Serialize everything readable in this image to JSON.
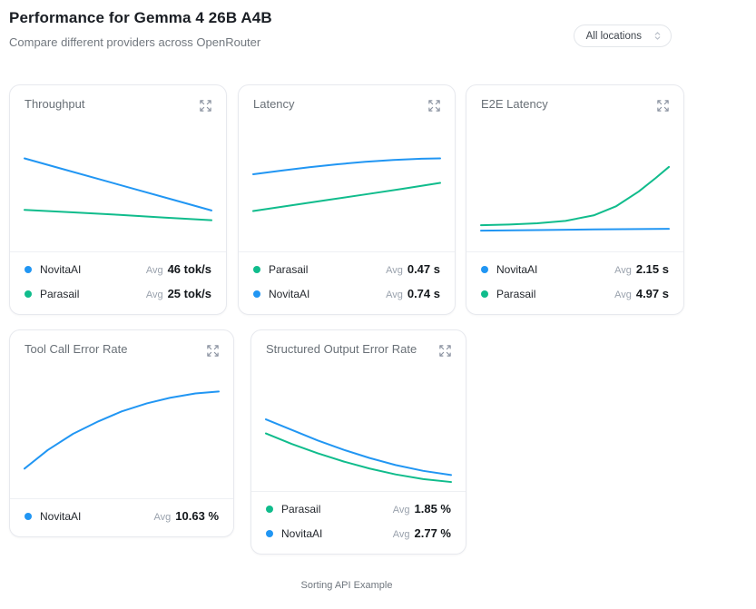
{
  "header": {
    "title": "Performance for Gemma 4 26B A4B",
    "subtitle": "Compare different providers across OpenRouter",
    "locations_dropdown": {
      "value": "All locations"
    }
  },
  "footer": {
    "caption": "Sorting API Example"
  },
  "colors": {
    "blue": "#2196f3",
    "green": "#10bc8c",
    "card_border": "#e7e9ee"
  },
  "chart_data": [
    {
      "type": "line",
      "title": "Throughput",
      "unit": "tok/s",
      "axes_visible": false,
      "legend_position": "bottom",
      "legend": [
        {
          "name": "NovitaAI",
          "color": "#2196f3",
          "avg_label": "Avg",
          "avg_value": "46 tok/s"
        },
        {
          "name": "Parasail",
          "color": "#10bc8c",
          "avg_label": "Avg",
          "avg_value": "25 tok/s"
        }
      ],
      "series": [
        {
          "name": "NovitaAI",
          "color": "#2196f3",
          "points_pct": [
            [
              0,
              30
            ],
            [
              20,
              38.5
            ],
            [
              40,
              47
            ],
            [
              60,
              55.5
            ],
            [
              80,
              64
            ],
            [
              100,
              72.5
            ]
          ]
        },
        {
          "name": "Parasail",
          "color": "#10bc8c",
          "points_pct": [
            [
              0,
              72
            ],
            [
              25,
              74
            ],
            [
              50,
              76
            ],
            [
              75,
              78.3
            ],
            [
              100,
              80.5
            ]
          ]
        }
      ]
    },
    {
      "type": "line",
      "title": "Latency",
      "unit": "s",
      "axes_visible": false,
      "legend_position": "bottom",
      "legend": [
        {
          "name": "Parasail",
          "color": "#10bc8c",
          "avg_label": "Avg",
          "avg_value": "0.47 s"
        },
        {
          "name": "NovitaAI",
          "color": "#2196f3",
          "avg_label": "Avg",
          "avg_value": "0.74 s"
        }
      ],
      "series": [
        {
          "name": "NovitaAI",
          "color": "#2196f3",
          "points_pct": [
            [
              0,
              43
            ],
            [
              15,
              40
            ],
            [
              30,
              37.2
            ],
            [
              45,
              34.8
            ],
            [
              60,
              32.8
            ],
            [
              75,
              31.3
            ],
            [
              90,
              30.3
            ],
            [
              100,
              30
            ]
          ]
        },
        {
          "name": "Parasail",
          "color": "#10bc8c",
          "points_pct": [
            [
              0,
              73
            ],
            [
              20,
              68.4
            ],
            [
              40,
              63.9
            ],
            [
              60,
              59.4
            ],
            [
              80,
              54.8
            ],
            [
              100,
              50
            ]
          ]
        }
      ]
    },
    {
      "type": "line",
      "title": "E2E Latency",
      "unit": "s",
      "axes_visible": false,
      "legend_position": "bottom",
      "legend": [
        {
          "name": "NovitaAI",
          "color": "#2196f3",
          "avg_label": "Avg",
          "avg_value": "2.15 s"
        },
        {
          "name": "Parasail",
          "color": "#10bc8c",
          "avg_label": "Avg",
          "avg_value": "4.97 s"
        }
      ],
      "series": [
        {
          "name": "Parasail",
          "color": "#10bc8c",
          "points_pct": [
            [
              0,
              84.5
            ],
            [
              15,
              84
            ],
            [
              30,
              83
            ],
            [
              45,
              81
            ],
            [
              60,
              76.5
            ],
            [
              72,
              69
            ],
            [
              84,
              57
            ],
            [
              93,
              46
            ],
            [
              100,
              37
            ]
          ]
        },
        {
          "name": "NovitaAI",
          "color": "#2196f3",
          "points_pct": [
            [
              0,
              89
            ],
            [
              30,
              88.5
            ],
            [
              60,
              88
            ],
            [
              100,
              87.5
            ]
          ]
        }
      ]
    },
    {
      "type": "line",
      "title": "Tool Call Error Rate",
      "unit": "%",
      "axes_visible": false,
      "legend_position": "bottom",
      "legend": [
        {
          "name": "NovitaAI",
          "color": "#2196f3",
          "avg_label": "Avg",
          "avg_value": "10.63 %"
        }
      ],
      "series": [
        {
          "name": "NovitaAI",
          "color": "#2196f3",
          "points_pct": [
            [
              0,
              82
            ],
            [
              12,
              67
            ],
            [
              25,
              54
            ],
            [
              38,
              44
            ],
            [
              50,
              36
            ],
            [
              63,
              29.5
            ],
            [
              75,
              25
            ],
            [
              88,
              21.5
            ],
            [
              100,
              20
            ]
          ]
        }
      ]
    },
    {
      "type": "line",
      "title": "Structured Output Error Rate",
      "unit": "%",
      "axes_visible": false,
      "legend_position": "bottom",
      "legend": [
        {
          "name": "Parasail",
          "color": "#10bc8c",
          "avg_label": "Avg",
          "avg_value": "1.85 %"
        },
        {
          "name": "NovitaAI",
          "color": "#2196f3",
          "avg_label": "Avg",
          "avg_value": "2.77 %"
        }
      ],
      "series": [
        {
          "name": "NovitaAI",
          "color": "#2196f3",
          "points_pct": [
            [
              0,
              45
            ],
            [
              14,
              54
            ],
            [
              28,
              63
            ],
            [
              42,
              71
            ],
            [
              56,
              78
            ],
            [
              70,
              84
            ],
            [
              85,
              89
            ],
            [
              100,
              92.5
            ]
          ]
        },
        {
          "name": "Parasail",
          "color": "#10bc8c",
          "points_pct": [
            [
              0,
              57
            ],
            [
              14,
              66
            ],
            [
              28,
              74
            ],
            [
              42,
              81
            ],
            [
              56,
              87
            ],
            [
              70,
              92
            ],
            [
              85,
              96
            ],
            [
              100,
              98.5
            ]
          ]
        }
      ]
    }
  ]
}
